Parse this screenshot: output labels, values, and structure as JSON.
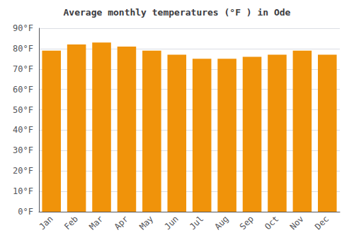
{
  "chart_data": {
    "type": "bar",
    "title": "Average monthly temperatures (°F ) in Ode",
    "categories": [
      "Jan",
      "Feb",
      "Mar",
      "Apr",
      "May",
      "Jun",
      "Jul",
      "Aug",
      "Sep",
      "Oct",
      "Nov",
      "Dec"
    ],
    "values": [
      79,
      82,
      83,
      81,
      79,
      77,
      75,
      75,
      76,
      77,
      79,
      77
    ],
    "color": "#F0930A",
    "ylim": [
      0,
      90
    ],
    "yticks": [
      {
        "value": 0,
        "label": "0°F"
      },
      {
        "value": 10,
        "label": "10°F"
      },
      {
        "value": 20,
        "label": "20°F"
      },
      {
        "value": 30,
        "label": "30°F"
      },
      {
        "value": 40,
        "label": "40°F"
      },
      {
        "value": 50,
        "label": "50°F"
      },
      {
        "value": 60,
        "label": "60°F"
      },
      {
        "value": 70,
        "label": "70°F"
      },
      {
        "value": 80,
        "label": "80°F"
      },
      {
        "value": 90,
        "label": "90°F"
      }
    ],
    "grid": true
  }
}
